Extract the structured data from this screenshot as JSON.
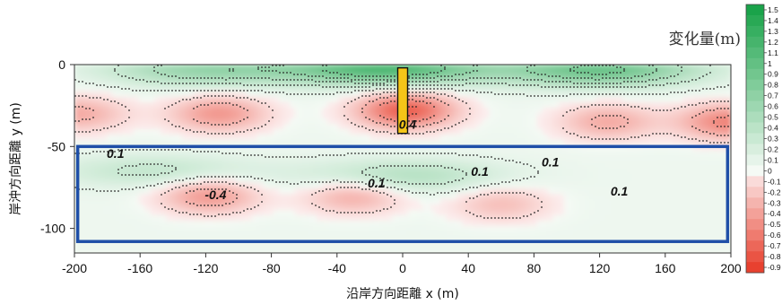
{
  "chart_data": {
    "type": "heatmap",
    "title": "",
    "xlabel": "沿岸方向距離 x (m)",
    "ylabel": "岸沖方向距離 y (m)",
    "xlim": [
      -200,
      200
    ],
    "ylim": [
      -115,
      0
    ],
    "x_ticks": [
      -200,
      -160,
      -120,
      -80,
      -40,
      0,
      40,
      80,
      120,
      160,
      200
    ],
    "y_ticks": [
      0,
      -50,
      -100
    ],
    "legend": {
      "title": "変化量(m)",
      "placement": "right",
      "levels": [
        1.5,
        1.4,
        1.3,
        1.2,
        1.1,
        1,
        0.9,
        0.8,
        0.7,
        0.6,
        0.5,
        0.4,
        0.3,
        0.2,
        0.1,
        0,
        -0.1,
        -0.2,
        -0.3,
        -0.4,
        -0.5,
        -0.6,
        -0.7,
        -0.8,
        -0.9
      ],
      "positive_color": "#1aa34a",
      "negative_color": "#e8412f"
    },
    "contour_labels": [
      {
        "text": "0.4",
        "x": 3,
        "y": -37
      },
      {
        "text": "0.1",
        "x": -175,
        "y": -55
      },
      {
        "text": "0.1",
        "x": -16,
        "y": -73
      },
      {
        "text": "0.1",
        "x": 47,
        "y": -66
      },
      {
        "text": "0.1",
        "x": 90,
        "y": -60
      },
      {
        "text": "0.1",
        "x": 132,
        "y": -78
      },
      {
        "text": "-0.4",
        "x": -114,
        "y": -80
      }
    ],
    "fields": {
      "positive_peaks": [
        {
          "x": -10,
          "y": -2,
          "value": 1.1
        },
        {
          "x": 120,
          "y": -3,
          "value": 0.9
        },
        {
          "x": -120,
          "y": -3,
          "value": 0.6
        },
        {
          "x": 0,
          "y": -68,
          "value": 0.4
        },
        {
          "x": -150,
          "y": -65,
          "value": 0.3
        }
      ],
      "negative_peaks": [
        {
          "x": 2,
          "y": -28,
          "value": -0.8
        },
        {
          "x": -112,
          "y": -30,
          "value": -0.5
        },
        {
          "x": 125,
          "y": -35,
          "value": -0.4
        },
        {
          "x": -118,
          "y": -80,
          "value": -0.5
        },
        {
          "x": -30,
          "y": -80,
          "value": -0.4
        },
        {
          "x": 60,
          "y": -85,
          "value": -0.3
        },
        {
          "x": 198,
          "y": -35,
          "value": -0.6
        },
        {
          "x": -198,
          "y": -30,
          "value": -0.4
        }
      ]
    },
    "annotations": [
      {
        "kind": "pier",
        "x_range": [
          -3,
          3
        ],
        "y_range": [
          -42,
          -2
        ],
        "color": "#f5c518"
      },
      {
        "kind": "analysis-box",
        "x_range": [
          -198,
          198
        ],
        "y_range": [
          -108,
          -50
        ],
        "color": "#1f4fa8"
      }
    ]
  }
}
